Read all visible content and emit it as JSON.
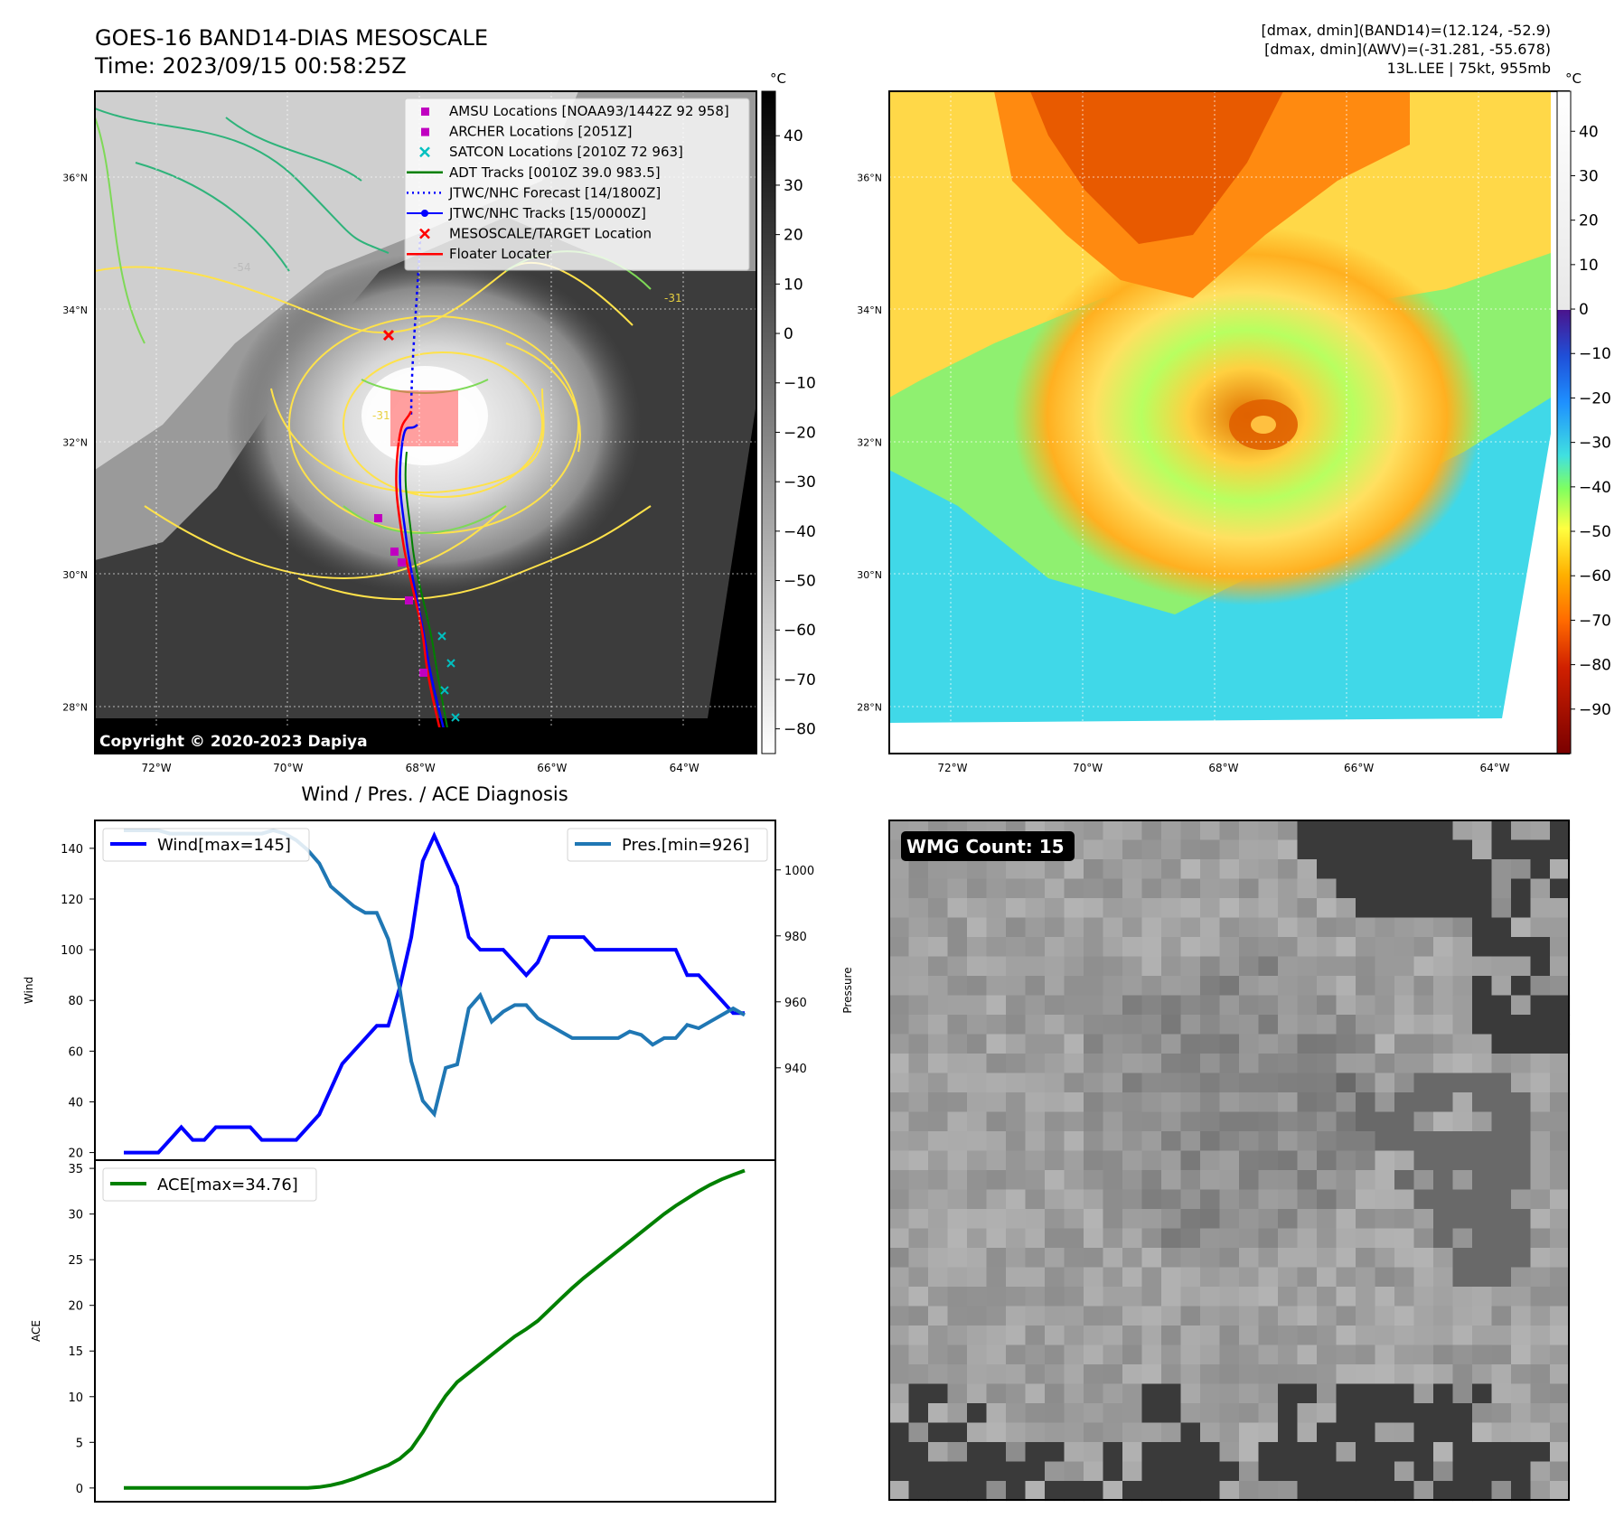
{
  "header_left": {
    "title": "GOES-16 BAND14-DIAS MESOSCALE",
    "time": "Time: 2023/09/15 00:58:25Z"
  },
  "header_right": {
    "line1": "[dmax, dmin](BAND14)=(12.124, -52.9)",
    "line2": "[dmax, dmin](AWV)=(-31.281, -55.678)",
    "line3": "13L.LEE | 75kt, 955mb"
  },
  "copyright": "Copyright © 2020-2023 Dapiya",
  "map_left": {
    "colorbar_unit": "°C",
    "colorbar_ticks": [
      40,
      30,
      20,
      10,
      0,
      -10,
      -20,
      -30,
      -40,
      -50,
      -60,
      -70,
      -80
    ],
    "colorbar_range": [
      -85,
      49
    ],
    "lon_ticks": [
      "72°W",
      "70°W",
      "68°W",
      "66°W",
      "64°W"
    ],
    "lat_ticks": [
      "36°N",
      "34°N",
      "32°N",
      "30°N",
      "28°N"
    ],
    "legend": [
      {
        "label": "AMSU Locations [NOAA93/1442Z 92 958]",
        "marker": "square",
        "color": "#c000c0"
      },
      {
        "label": "ARCHER Locations [2051Z]",
        "marker": "square",
        "color": "#c000c0"
      },
      {
        "label": "SATCON Locations [2010Z 72 963]",
        "marker": "x",
        "color": "#00c0c0"
      },
      {
        "label": "ADT Tracks [0010Z 39.0 983.5]",
        "marker": "line",
        "color": "#008000"
      },
      {
        "label": "JTWC/NHC Forecast [14/1800Z]",
        "marker": "dotted",
        "color": "#0000ff"
      },
      {
        "label": "JTWC/NHC Tracks [15/0000Z]",
        "marker": "line-dot",
        "color": "#0000ff"
      },
      {
        "label": "MESOSCALE/TARGET Location",
        "marker": "x",
        "color": "#ff0000"
      },
      {
        "label": "Floater Locater",
        "marker": "line",
        "color": "#ff0000"
      }
    ],
    "contour_labels": [
      "-54",
      "-31",
      "-31"
    ]
  },
  "map_right": {
    "colorbar_unit": "°C",
    "colorbar_ticks": [
      40,
      30,
      20,
      10,
      0,
      -10,
      -20,
      -30,
      -40,
      -50,
      -60,
      -70,
      -80,
      -90
    ],
    "colorbar_range": [
      -100,
      49
    ],
    "lon_ticks": [
      "72°W",
      "70°W",
      "68°W",
      "66°W",
      "64°W"
    ],
    "lat_ticks": [
      "36°N",
      "34°N",
      "32°N",
      "30°N",
      "28°N"
    ]
  },
  "wmg": {
    "label": "WMG Count: 15"
  },
  "chart_data": [
    {
      "type": "line",
      "title": "Wind / Pres. / ACE Diagnosis",
      "ylabel": "Wind",
      "ylabel_right": "Pressure",
      "ylim": [
        17,
        151
      ],
      "ylim_right": [
        912,
        1015
      ],
      "yticks": [
        20,
        40,
        60,
        80,
        100,
        120,
        140
      ],
      "yticks_right": [
        940,
        960,
        980,
        1000
      ],
      "series": [
        {
          "name": "Wind[max=145]",
          "color": "#0000ff",
          "axis": "left",
          "values": [
            20,
            20,
            20,
            20,
            25,
            30,
            25,
            25,
            30,
            30,
            30,
            30,
            25,
            25,
            25,
            25,
            30,
            35,
            45,
            55,
            60,
            65,
            70,
            70,
            85,
            105,
            135,
            145,
            135,
            125,
            105,
            100,
            100,
            100,
            95,
            90,
            95,
            105,
            105,
            105,
            105,
            100,
            100,
            100,
            100,
            100,
            100,
            100,
            100,
            90,
            90,
            85,
            80,
            75,
            75
          ]
        },
        {
          "name": "Pres.[min=926]",
          "color": "#1f77b4",
          "axis": "right",
          "values": [
            1012,
            1012,
            1012,
            1012,
            1011,
            1011,
            1011,
            1011,
            1011,
            1011,
            1011,
            1011,
            1011,
            1012,
            1011,
            1009,
            1006,
            1002,
            995,
            992,
            989,
            987,
            987,
            979,
            964,
            942,
            930,
            926,
            940,
            941,
            958,
            962,
            954,
            957,
            959,
            959,
            955,
            953,
            951,
            949,
            949,
            949,
            949,
            949,
            951,
            950,
            947,
            949,
            949,
            953,
            952,
            954,
            956,
            958,
            956
          ]
        }
      ]
    },
    {
      "type": "line",
      "ylabel": "ACE",
      "ylim": [
        -1.5,
        35.9
      ],
      "yticks": [
        0,
        5,
        10,
        15,
        20,
        25,
        30,
        35
      ],
      "series": [
        {
          "name": "ACE[max=34.76]",
          "color": "#008000",
          "values": [
            0,
            0,
            0,
            0,
            0,
            0,
            0,
            0,
            0,
            0,
            0,
            0,
            0,
            0,
            0,
            0,
            0,
            0.1,
            0.3,
            0.6,
            1.0,
            1.5,
            2.0,
            2.5,
            3.2,
            4.3,
            6.1,
            8.2,
            10.1,
            11.6,
            12.6,
            13.6,
            14.6,
            15.6,
            16.6,
            17.4,
            18.3,
            19.5,
            20.7,
            21.9,
            23.0,
            24.0,
            25.0,
            26.0,
            27.0,
            28.0,
            29.0,
            30.0,
            30.9,
            31.7,
            32.5,
            33.2,
            33.8,
            34.3,
            34.76
          ]
        }
      ]
    }
  ]
}
